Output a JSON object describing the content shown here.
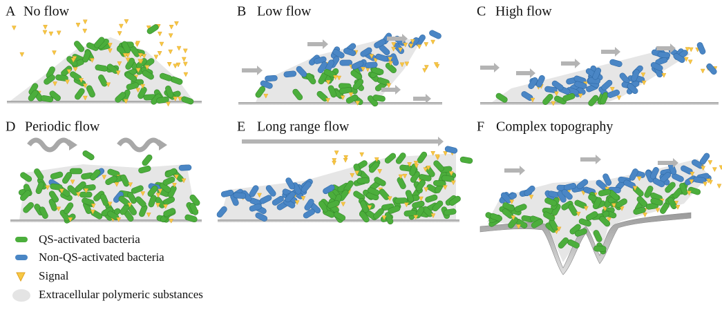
{
  "panels": [
    {
      "letter": "A",
      "title": "No flow"
    },
    {
      "letter": "B",
      "title": "Low flow"
    },
    {
      "letter": "C",
      "title": "High flow"
    },
    {
      "letter": "D",
      "title": "Periodic flow"
    },
    {
      "letter": "E",
      "title": "Long range flow"
    },
    {
      "letter": "F",
      "title": "Complex topography"
    }
  ],
  "legend": {
    "items": [
      {
        "label": "QS-activated bacteria"
      },
      {
        "label": "Non-QS-activated bacteria"
      },
      {
        "label": "Signal"
      },
      {
        "label": "Extracellular polymeric substances"
      }
    ]
  }
}
